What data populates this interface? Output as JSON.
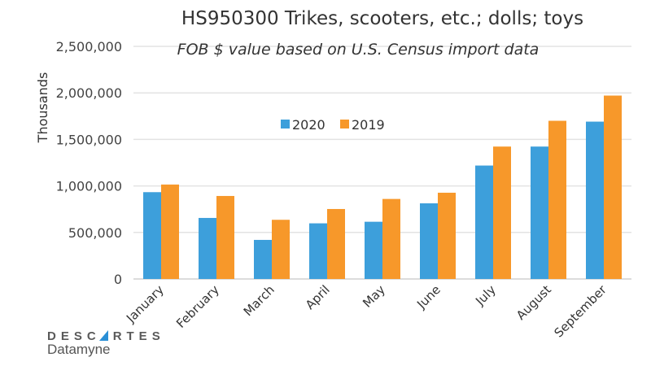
{
  "chart_data": {
    "type": "bar",
    "title": "HS950300 Trikes, scooters, etc.; dolls; toys",
    "subtitle": "FOB $ value based on U.S. Census import data",
    "xlabel": "",
    "ylabel": "Thousands",
    "ylim": [
      0,
      2500000
    ],
    "yticks": [
      0,
      500000,
      1000000,
      1500000,
      2000000,
      2500000
    ],
    "ytick_labels": [
      "0",
      "500,000",
      "1,000,000",
      "1,500,000",
      "2,000,000",
      "2,500,000"
    ],
    "grid": true,
    "legend_position": "top-center",
    "categories": [
      "January",
      "February",
      "March",
      "April",
      "May",
      "June",
      "July",
      "August",
      "September"
    ],
    "series": [
      {
        "name": "2020",
        "color": "#3d9fdb",
        "values": [
          933000,
          656000,
          420000,
          598000,
          615000,
          813000,
          1219000,
          1423000,
          1691000
        ]
      },
      {
        "name": "2019",
        "color": "#f7982a",
        "values": [
          1015000,
          892000,
          636000,
          752000,
          860000,
          927000,
          1423000,
          1700000,
          1971000
        ]
      }
    ]
  },
  "logo": {
    "line1": "DESCARTES",
    "line2": "Datamyne"
  }
}
